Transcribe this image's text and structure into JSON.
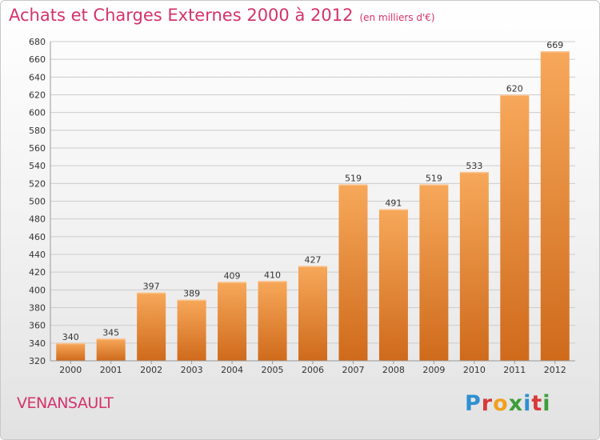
{
  "header": {
    "title": "Achats et Charges Externes 2000 à 2012",
    "unit": "(en milliers d'€)"
  },
  "footer": {
    "commune": "VENANSAULT",
    "logo_text": "Proxiti",
    "logo_colors": [
      "#2f8fd0",
      "#d63a3a",
      "#f0a020",
      "#3c9e3c",
      "#2f8fd0",
      "#d63a3a",
      "#3c9e3c"
    ]
  },
  "colors": {
    "title": "#d4336b",
    "bar_light": "#f7a85a",
    "bar_dark": "#cf6a1b",
    "grid": "#cccccc",
    "axis_text": "#333333"
  },
  "chart_data": {
    "type": "bar",
    "title": "Achats et Charges Externes 2000 à 2012",
    "subtitle": "(en milliers d'€)",
    "xlabel": "",
    "ylabel": "",
    "categories": [
      "2000",
      "2001",
      "2002",
      "2003",
      "2004",
      "2005",
      "2006",
      "2007",
      "2008",
      "2009",
      "2010",
      "2011",
      "2012"
    ],
    "values": [
      340,
      345,
      397,
      389,
      409,
      410,
      427,
      519,
      491,
      519,
      533,
      620,
      669
    ],
    "ylim": [
      320,
      680
    ],
    "yticks": [
      320,
      340,
      360,
      380,
      400,
      420,
      440,
      460,
      480,
      500,
      520,
      540,
      560,
      580,
      600,
      620,
      640,
      660,
      680
    ],
    "grid": true,
    "data_labels": true
  }
}
